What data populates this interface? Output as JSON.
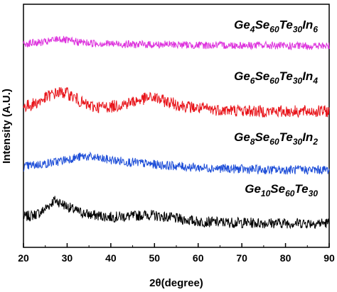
{
  "chart_data": {
    "type": "line",
    "title": "",
    "xlabel": "2θ(degree)",
    "ylabel": "Intensity (A.U.)",
    "xlim": [
      20,
      90
    ],
    "xticks": [
      "20",
      "30",
      "40",
      "50",
      "60",
      "70",
      "80",
      "90"
    ],
    "grid": false,
    "y_scale": "arbitrary units, stacked traces, no y tick labels",
    "series": [
      {
        "label_parts": [
          {
            "t": "Ge",
            "s": false
          },
          {
            "t": "10",
            "s": true
          },
          {
            "t": "Se",
            "s": false
          },
          {
            "t": "60",
            "s": true
          },
          {
            "t": "Te",
            "s": false
          },
          {
            "t": "30",
            "s": true
          }
        ],
        "color": "#000000",
        "x": [
          20,
          22,
          24,
          26,
          27,
          28,
          30,
          32,
          35,
          40,
          45,
          48,
          50,
          55,
          60,
          65,
          70,
          75,
          80,
          85,
          90
        ],
        "y": [
          0.1,
          0.12,
          0.16,
          0.26,
          0.32,
          0.3,
          0.24,
          0.18,
          0.13,
          0.1,
          0.11,
          0.13,
          0.12,
          0.08,
          0.04,
          0.03,
          0.025,
          0.02,
          0.02,
          0.02,
          0.02
        ]
      },
      {
        "label_parts": [
          {
            "t": "Ge",
            "s": false
          },
          {
            "t": "8",
            "s": true
          },
          {
            "t": "Se",
            "s": false
          },
          {
            "t": "60",
            "s": true
          },
          {
            "t": "Te",
            "s": false
          },
          {
            "t": "30",
            "s": true
          },
          {
            "t": "In",
            "s": false
          },
          {
            "t": "2",
            "s": true
          }
        ],
        "color": "#1f4fd8",
        "x": [
          20,
          22,
          25,
          28,
          30,
          32,
          34,
          36,
          40,
          45,
          50,
          55,
          60,
          65,
          70,
          75,
          80,
          85,
          90
        ],
        "y": [
          0.76,
          0.78,
          0.8,
          0.83,
          0.86,
          0.88,
          0.9,
          0.88,
          0.85,
          0.82,
          0.79,
          0.77,
          0.75,
          0.74,
          0.73,
          0.72,
          0.72,
          0.72,
          0.72
        ]
      },
      {
        "label_parts": [
          {
            "t": "Ge",
            "s": false
          },
          {
            "t": "6",
            "s": true
          },
          {
            "t": "Se",
            "s": false
          },
          {
            "t": "60",
            "s": true
          },
          {
            "t": "Te",
            "s": false
          },
          {
            "t": "30",
            "s": true
          },
          {
            "t": "In",
            "s": false
          },
          {
            "t": "4",
            "s": true
          }
        ],
        "color": "#e8141a",
        "x": [
          20,
          22,
          24,
          26,
          28,
          30,
          32,
          34,
          36,
          40,
          44,
          48,
          50,
          52,
          56,
          60,
          65,
          70,
          75,
          80,
          85,
          90
        ],
        "y": [
          1.55,
          1.58,
          1.63,
          1.7,
          1.74,
          1.73,
          1.66,
          1.58,
          1.55,
          1.55,
          1.6,
          1.66,
          1.67,
          1.63,
          1.57,
          1.53,
          1.51,
          1.5,
          1.49,
          1.49,
          1.49,
          1.49
        ]
      },
      {
        "label_parts": [
          {
            "t": "Ge",
            "s": false
          },
          {
            "t": "4",
            "s": true
          },
          {
            "t": "Se",
            "s": false
          },
          {
            "t": "60",
            "s": true
          },
          {
            "t": "Te",
            "s": false
          },
          {
            "t": "30",
            "s": true
          },
          {
            "t": "In",
            "s": false
          },
          {
            "t": "6",
            "s": true
          }
        ],
        "color": "#dd33dd",
        "x": [
          20,
          22,
          25,
          27,
          28,
          30,
          33,
          35,
          40,
          45,
          50,
          55,
          60,
          65,
          70,
          75,
          80,
          85,
          90
        ],
        "y": [
          2.38,
          2.39,
          2.4,
          2.43,
          2.45,
          2.42,
          2.4,
          2.39,
          2.38,
          2.37,
          2.37,
          2.37,
          2.36,
          2.36,
          2.36,
          2.36,
          2.35,
          2.35,
          2.35
        ]
      }
    ]
  }
}
